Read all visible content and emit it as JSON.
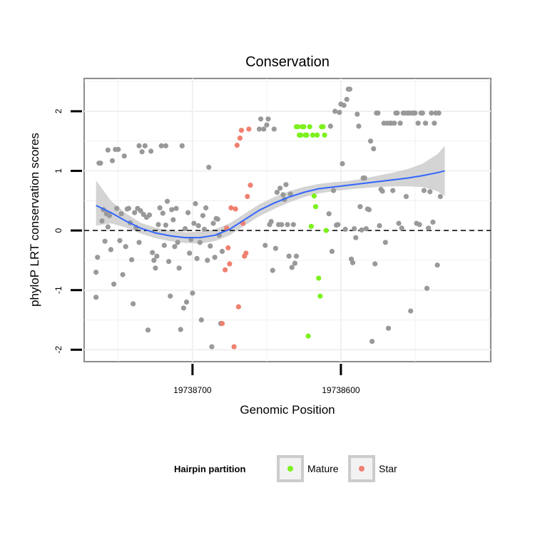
{
  "chart_data": {
    "type": "scatter",
    "title": "Conservation",
    "xlabel": "Genomic Position",
    "ylabel": "phyloP LRT conservation scores",
    "x_reversed": true,
    "xlim": [
      19738773,
      19738499
    ],
    "ylim": [
      -2.2,
      2.55
    ],
    "xticks": [
      {
        "value": 19738700,
        "label": "19738700"
      },
      {
        "value": 19738600,
        "label": "19738600"
      }
    ],
    "yticks": [
      {
        "value": -2,
        "label": "-2"
      },
      {
        "value": -1,
        "label": "-1"
      },
      {
        "value": 0,
        "label": "0"
      },
      {
        "value": 1,
        "label": "1"
      },
      {
        "value": 2,
        "label": "2"
      }
    ],
    "grid": true,
    "reference_line": {
      "y": 0,
      "style": "dashed"
    },
    "legend": {
      "title": "Hairpin partition",
      "position": "bottom",
      "entries": [
        {
          "label": "Mature",
          "color": "#7cf11d"
        },
        {
          "label": "Star",
          "color": "#f08070"
        }
      ]
    },
    "colors": {
      "other": "#999999",
      "Mature": "#7cf11d",
      "Star": "#f08070",
      "smooth": "#3366ff",
      "band": "#cccccc"
    },
    "series": [
      {
        "group": "other",
        "points": [
          [
            19738765,
            -0.7
          ],
          [
            19738765,
            -1.12
          ],
          [
            19738764,
            -0.45
          ],
          [
            19738763,
            1.13
          ],
          [
            19738762,
            1.13
          ],
          [
            19738761,
            0.16
          ],
          [
            19738760,
            0.35
          ],
          [
            19738759,
            -0.18
          ],
          [
            19738758,
            0.28
          ],
          [
            19738757,
            1.35
          ],
          [
            19738757,
            0.06
          ],
          [
            19738756,
            0.25
          ],
          [
            19738755,
            -0.32
          ],
          [
            19738754,
            1.17
          ],
          [
            19738753,
            -0.9
          ],
          [
            19738752,
            1.36
          ],
          [
            19738751,
            0.37
          ],
          [
            19738750,
            1.36
          ],
          [
            19738749,
            -0.17
          ],
          [
            19738748,
            0.28
          ],
          [
            19738747,
            -0.74
          ],
          [
            19738746,
            1.25
          ],
          [
            19738745,
            -0.27
          ],
          [
            19738744,
            0.36
          ],
          [
            19738743,
            0.37
          ],
          [
            19738742,
            0.13
          ],
          [
            19738741,
            -0.49
          ],
          [
            19738740,
            -1.23
          ],
          [
            19738739,
            0.3
          ],
          [
            19738738,
            0.05
          ],
          [
            19738737,
            0.37
          ],
          [
            19738736,
            1.42
          ],
          [
            19738736,
            -0.2
          ],
          [
            19738735,
            0.33
          ],
          [
            19738734,
            1.32
          ],
          [
            19738733,
            0.27
          ],
          [
            19738732,
            1.42
          ],
          [
            19738731,
            0.22
          ],
          [
            19738730,
            -1.67
          ],
          [
            19738729,
            0.26
          ],
          [
            19738728,
            1.33
          ],
          [
            19738727,
            -0.37
          ],
          [
            19738726,
            -0.5
          ],
          [
            19738725,
            -0.63
          ],
          [
            19738724,
            -0.43
          ],
          [
            19738723,
            0.1
          ],
          [
            19738722,
            0.38
          ],
          [
            19738721,
            1.42
          ],
          [
            19738720,
            0.29
          ],
          [
            19738719,
            -0.25
          ],
          [
            19738718,
            1.42
          ],
          [
            19738718,
            0.09
          ],
          [
            19738717,
            0.49
          ],
          [
            19738716,
            -0.52
          ],
          [
            19738715,
            -1.1
          ],
          [
            19738714,
            0.35
          ],
          [
            19738713,
            0.18
          ],
          [
            19738712,
            -0.27
          ],
          [
            19738711,
            0.37
          ],
          [
            19738710,
            -0.2
          ],
          [
            19738709,
            -0.63
          ],
          [
            19738708,
            -1.66
          ],
          [
            19738707,
            1.42
          ],
          [
            19738706,
            -1.3
          ],
          [
            19738705,
            0.03
          ],
          [
            19738704,
            -1.2
          ],
          [
            19738703,
            0.3
          ],
          [
            19738702,
            -0.38
          ],
          [
            19738701,
            -0.15
          ],
          [
            19738700,
            -1.05
          ],
          [
            19738699,
            0.12
          ],
          [
            19738698,
            0.45
          ],
          [
            19738697,
            -0.47
          ],
          [
            19738696,
            0.08
          ],
          [
            19738695,
            -0.2
          ],
          [
            19738694,
            -1.5
          ],
          [
            19738693,
            0.25
          ],
          [
            19738692,
            0.02
          ],
          [
            19738691,
            0.38
          ],
          [
            19738690,
            -0.5
          ],
          [
            19738689,
            1.06
          ],
          [
            19738688,
            -0.26
          ],
          [
            19738687,
            -1.95
          ],
          [
            19738686,
            0.12
          ],
          [
            19738685,
            -0.45
          ],
          [
            19738684,
            0.2
          ],
          [
            19738683,
            0.19
          ],
          [
            19738682,
            -0.08
          ],
          [
            19738681,
            -1.56
          ],
          [
            19738680,
            -0.35
          ],
          [
            19738655,
            1.7
          ],
          [
            19738654,
            1.87
          ],
          [
            19738652,
            1.7
          ],
          [
            19738651,
            -0.25
          ],
          [
            19738650,
            1.77
          ],
          [
            19738649,
            1.87
          ],
          [
            19738648,
            0.1
          ],
          [
            19738647,
            0.15
          ],
          [
            19738646,
            -0.67
          ],
          [
            19738645,
            1.7
          ],
          [
            19738644,
            -0.3
          ],
          [
            19738643,
            0.64
          ],
          [
            19738642,
            0.1
          ],
          [
            19738641,
            0.71
          ],
          [
            19738640,
            0.1
          ],
          [
            19738639,
            0.6
          ],
          [
            19738638,
            0.52
          ],
          [
            19738637,
            0.77
          ],
          [
            19738636,
            0.1
          ],
          [
            19738635,
            -0.43
          ],
          [
            19738634,
            0.61
          ],
          [
            19738633,
            -0.62
          ],
          [
            19738632,
            0.1
          ],
          [
            19738631,
            -0.55
          ],
          [
            19738630,
            -0.43
          ],
          [
            19738608,
            0.28
          ],
          [
            19738607,
            1.75
          ],
          [
            19738606,
            -0.35
          ],
          [
            19738605,
            0.67
          ],
          [
            19738604,
            2.0
          ],
          [
            19738603,
            0.09
          ],
          [
            19738602,
            0.1
          ],
          [
            19738601,
            1.98
          ],
          [
            19738600,
            2.12
          ],
          [
            19738599,
            1.12
          ],
          [
            19738598,
            2.1
          ],
          [
            19738597,
            0.02
          ],
          [
            19738596,
            2.2
          ],
          [
            19738595,
            2.37
          ],
          [
            19738594,
            2.37
          ],
          [
            19738593,
            -0.48
          ],
          [
            19738592,
            -0.54
          ],
          [
            19738591,
            0.03
          ],
          [
            19738590,
            -0.12
          ],
          [
            19738589,
            1.95
          ],
          [
            19738588,
            1.75
          ],
          [
            19738587,
            0.4
          ],
          [
            19738586,
            0.01
          ],
          [
            19738585,
            0.88
          ],
          [
            19738584,
            0.88
          ],
          [
            19738583,
            0.03
          ],
          [
            19738582,
            0.36
          ],
          [
            19738581,
            0.35
          ],
          [
            19738580,
            1.5
          ],
          [
            19738579,
            -1.86
          ],
          [
            19738578,
            1.37
          ],
          [
            19738577,
            -0.56
          ],
          [
            19738576,
            1.97
          ],
          [
            19738575,
            1.97
          ],
          [
            19738574,
            0.08
          ],
          [
            19738573,
            0.69
          ],
          [
            19738572,
            0.66
          ],
          [
            19738571,
            1.8
          ],
          [
            19738570,
            -0.2
          ],
          [
            19738569,
            1.8
          ],
          [
            19738568,
            -1.64
          ],
          [
            19738567,
            1.8
          ],
          [
            19738566,
            1.8
          ],
          [
            19738565,
            0.67
          ],
          [
            19738564,
            1.8
          ],
          [
            19738563,
            1.97
          ],
          [
            19738562,
            1.97
          ],
          [
            19738561,
            0.12
          ],
          [
            19738560,
            1.8
          ],
          [
            19738559,
            0.04
          ],
          [
            19738558,
            1.97
          ],
          [
            19738557,
            1.97
          ],
          [
            19738556,
            0.57
          ],
          [
            19738555,
            1.97
          ],
          [
            19738554,
            1.97
          ],
          [
            19738553,
            -1.35
          ],
          [
            19738552,
            1.97
          ],
          [
            19738551,
            1.97
          ],
          [
            19738550,
            1.97
          ],
          [
            19738549,
            0.12
          ],
          [
            19738548,
            1.8
          ],
          [
            19738547,
            0.1
          ],
          [
            19738546,
            1.97
          ],
          [
            19738545,
            1.97
          ],
          [
            19738544,
            0.67
          ],
          [
            19738543,
            1.8
          ],
          [
            19738542,
            -0.97
          ],
          [
            19738541,
            0.04
          ],
          [
            19738540,
            0.65
          ],
          [
            19738539,
            1.97
          ],
          [
            19738538,
            0.14
          ],
          [
            19738537,
            1.8
          ],
          [
            19738536,
            1.97
          ],
          [
            19738535,
            -0.58
          ],
          [
            19738534,
            1.97
          ],
          [
            19738533,
            0.57
          ]
        ]
      },
      {
        "group": "Star",
        "points": [
          [
            19738680,
            -1.56
          ],
          [
            19738678,
            -0.66
          ],
          [
            19738677,
            0.04
          ],
          [
            19738676,
            -0.29
          ],
          [
            19738675,
            -0.56
          ],
          [
            19738674,
            0.38
          ],
          [
            19738672,
            -1.95
          ],
          [
            19738671,
            0.36
          ],
          [
            19738670,
            1.43
          ],
          [
            19738669,
            -1.28
          ],
          [
            19738668,
            1.55
          ],
          [
            19738667,
            1.68
          ],
          [
            19738666,
            0.12
          ],
          [
            19738665,
            -0.43
          ],
          [
            19738664,
            -0.38
          ],
          [
            19738663,
            0.57
          ],
          [
            19738662,
            1.7
          ],
          [
            19738661,
            0.76
          ]
        ]
      },
      {
        "group": "Mature",
        "points": [
          [
            19738630,
            1.74
          ],
          [
            19738629,
            1.74
          ],
          [
            19738628,
            1.6
          ],
          [
            19738627,
            1.6
          ],
          [
            19738626,
            1.74
          ],
          [
            19738625,
            1.74
          ],
          [
            19738624,
            1.6
          ],
          [
            19738623,
            1.6
          ],
          [
            19738622,
            -1.77
          ],
          [
            19738621,
            1.74
          ],
          [
            19738620,
            0.07
          ],
          [
            19738619,
            1.6
          ],
          [
            19738618,
            0.58
          ],
          [
            19738617,
            0.4
          ],
          [
            19738616,
            1.6
          ],
          [
            19738615,
            -0.8
          ],
          [
            19738614,
            -1.1
          ],
          [
            19738613,
            1.74
          ],
          [
            19738612,
            1.74
          ],
          [
            19738611,
            1.6
          ],
          [
            19738610,
            0.0
          ]
        ]
      }
    ],
    "smooth": [
      [
        19738765,
        0.42
      ],
      [
        19738755,
        0.3
      ],
      [
        19738745,
        0.16
      ],
      [
        19738735,
        0.04
      ],
      [
        19738725,
        -0.04
      ],
      [
        19738715,
        -0.09
      ],
      [
        19738705,
        -0.12
      ],
      [
        19738695,
        -0.12
      ],
      [
        19738685,
        -0.08
      ],
      [
        19738675,
        0.02
      ],
      [
        19738665,
        0.18
      ],
      [
        19738655,
        0.34
      ],
      [
        19738645,
        0.46
      ],
      [
        19738635,
        0.56
      ],
      [
        19738625,
        0.64
      ],
      [
        19738615,
        0.7
      ],
      [
        19738605,
        0.73
      ],
      [
        19738595,
        0.76
      ],
      [
        19738585,
        0.79
      ],
      [
        19738575,
        0.82
      ],
      [
        19738565,
        0.85
      ],
      [
        19738555,
        0.88
      ],
      [
        19738545,
        0.92
      ],
      [
        19738535,
        0.97
      ],
      [
        19738530,
        1.0
      ]
    ],
    "band_lower": [
      [
        19738765,
        0.08
      ],
      [
        19738755,
        0.12
      ],
      [
        19738745,
        0.05
      ],
      [
        19738735,
        -0.05
      ],
      [
        19738725,
        -0.13
      ],
      [
        19738715,
        -0.18
      ],
      [
        19738705,
        -0.21
      ],
      [
        19738695,
        -0.22
      ],
      [
        19738685,
        -0.18
      ],
      [
        19738675,
        -0.08
      ],
      [
        19738665,
        0.08
      ],
      [
        19738655,
        0.24
      ],
      [
        19738645,
        0.36
      ],
      [
        19738635,
        0.47
      ],
      [
        19738625,
        0.56
      ],
      [
        19738615,
        0.62
      ],
      [
        19738605,
        0.66
      ],
      [
        19738595,
        0.69
      ],
      [
        19738585,
        0.71
      ],
      [
        19738575,
        0.73
      ],
      [
        19738565,
        0.74
      ],
      [
        19738555,
        0.74
      ],
      [
        19738545,
        0.73
      ],
      [
        19738535,
        0.66
      ],
      [
        19738530,
        0.58
      ]
    ],
    "band_upper": [
      [
        19738765,
        0.84
      ],
      [
        19738755,
        0.5
      ],
      [
        19738745,
        0.29
      ],
      [
        19738735,
        0.13
      ],
      [
        19738725,
        0.05
      ],
      [
        19738715,
        0.0
      ],
      [
        19738705,
        -0.03
      ],
      [
        19738695,
        -0.02
      ],
      [
        19738685,
        0.02
      ],
      [
        19738675,
        0.12
      ],
      [
        19738665,
        0.28
      ],
      [
        19738655,
        0.44
      ],
      [
        19738645,
        0.56
      ],
      [
        19738635,
        0.66
      ],
      [
        19738625,
        0.73
      ],
      [
        19738615,
        0.78
      ],
      [
        19738605,
        0.81
      ],
      [
        19738595,
        0.83
      ],
      [
        19738585,
        0.87
      ],
      [
        19738575,
        0.92
      ],
      [
        19738565,
        0.97
      ],
      [
        19738555,
        1.03
      ],
      [
        19738545,
        1.12
      ],
      [
        19738535,
        1.28
      ],
      [
        19738530,
        1.42
      ]
    ]
  }
}
